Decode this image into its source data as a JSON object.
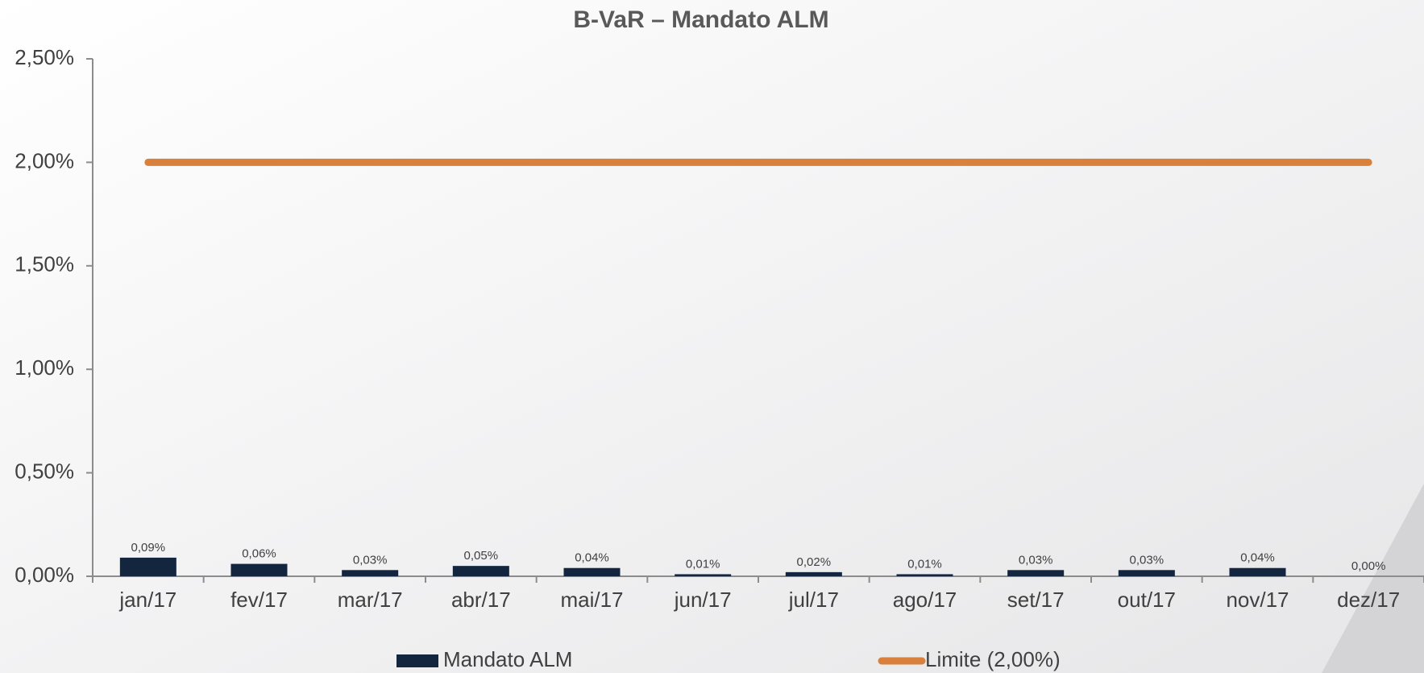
{
  "chart_data": {
    "type": "bar",
    "title": "B-VaR – Mandato ALM",
    "categories": [
      "jan/17",
      "fev/17",
      "mar/17",
      "abr/17",
      "mai/17",
      "jun/17",
      "jul/17",
      "ago/17",
      "set/17",
      "out/17",
      "nov/17",
      "dez/17"
    ],
    "series": [
      {
        "name": "Mandato ALM",
        "type": "bar",
        "color": "#14253f",
        "values": [
          0.09,
          0.06,
          0.03,
          0.05,
          0.04,
          0.01,
          0.02,
          0.01,
          0.03,
          0.03,
          0.04,
          0.0
        ],
        "value_labels": [
          "0,09%",
          "0,06%",
          "0,03%",
          "0,05%",
          "0,04%",
          "0,01%",
          "0,02%",
          "0,01%",
          "0,03%",
          "0,03%",
          "0,04%",
          "0,00%"
        ]
      },
      {
        "name": "Limite (2,00%)",
        "type": "line",
        "color": "#d9803c",
        "values": [
          2,
          2,
          2,
          2,
          2,
          2,
          2,
          2,
          2,
          2,
          2,
          2
        ]
      }
    ],
    "ylim": [
      0,
      2.5
    ],
    "yticks": [
      {
        "value": 0,
        "label": "0,00%"
      },
      {
        "value": 0.5,
        "label": "0,50%"
      },
      {
        "value": 1,
        "label": "1,00%"
      },
      {
        "value": 1.5,
        "label": "1,50%"
      },
      {
        "value": 2,
        "label": "2,00%"
      },
      {
        "value": 2.5,
        "label": "2,50%"
      }
    ],
    "grid": false
  }
}
